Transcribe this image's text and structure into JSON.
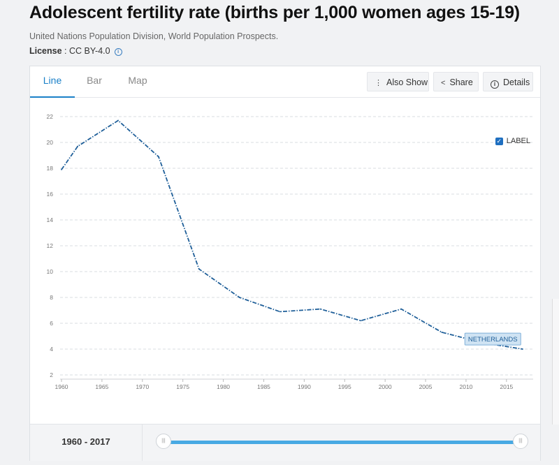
{
  "header": {
    "title": "Adolescent fertility rate (births per 1,000 women ages 15-19)",
    "source": "United Nations Population Division, World Population Prospects.",
    "license_label": "License",
    "license_value": " : CC BY-4.0"
  },
  "tabs": [
    {
      "label": "Line",
      "active": true
    },
    {
      "label": "Bar",
      "active": false
    },
    {
      "label": "Map",
      "active": false
    }
  ],
  "toolbar": {
    "also_show": "Also Show",
    "share": "Share",
    "details": "Details"
  },
  "label_toggle": "LABEL",
  "range": {
    "label": "1960 - 2017",
    "start": 1960,
    "end": 2017
  },
  "colors": {
    "series": "#1f5f99",
    "accent": "#1a80c8",
    "slider": "#48a9e3",
    "label_bg": "#cfe3f3"
  },
  "chart_data": {
    "type": "line",
    "title": "Adolescent fertility rate (births per 1,000 women ages 15-19)",
    "xlabel": "",
    "ylabel": "",
    "xlim": [
      1960,
      2017
    ],
    "ylim": [
      2,
      22
    ],
    "x_ticks": [
      1960,
      1965,
      1970,
      1975,
      1980,
      1985,
      1990,
      1995,
      2000,
      2005,
      2010,
      2015
    ],
    "y_ticks": [
      2,
      4,
      6,
      8,
      10,
      12,
      14,
      16,
      18,
      20,
      22
    ],
    "grid": true,
    "series": [
      {
        "name": "NETHERLANDS",
        "x": [
          1960,
          1962,
          1967,
          1972,
          1977,
          1982,
          1987,
          1992,
          1997,
          2002,
          2007,
          2012,
          2017
        ],
        "values": [
          17.9,
          19.7,
          21.7,
          18.9,
          10.2,
          8.0,
          6.9,
          7.1,
          6.2,
          7.1,
          5.3,
          4.5,
          4.0
        ]
      }
    ],
    "series_label": "NETHERLANDS"
  }
}
